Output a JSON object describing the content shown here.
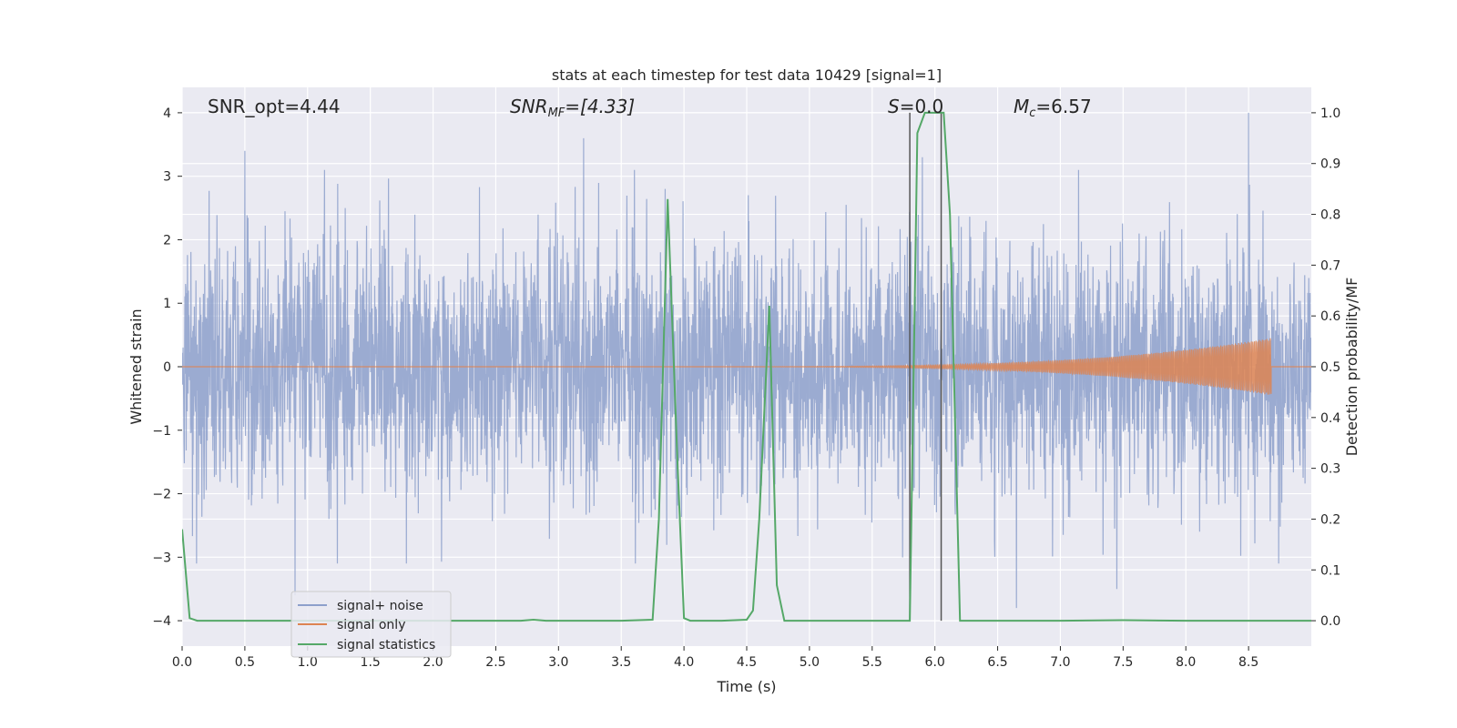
{
  "chart_data": {
    "type": "line",
    "title": "stats at each timestep for test data 10429 [signal=1]",
    "xlabel": "Time (s)",
    "ylabel_left": "Whitened strain",
    "ylabel_right": "Detection probability/MF",
    "xlim": [
      0,
      9.0
    ],
    "ylim_left": [
      -4.4,
      4.4
    ],
    "ylim_right": [
      -0.05,
      1.05
    ],
    "xticks": [
      0.0,
      0.5,
      1.0,
      1.5,
      2.0,
      2.5,
      3.0,
      3.5,
      4.0,
      4.5,
      5.0,
      5.5,
      6.0,
      6.5,
      7.0,
      7.5,
      8.0,
      8.5
    ],
    "xtick_labels": [
      "0.0",
      "0.5",
      "1.0",
      "1.5",
      "2.0",
      "2.5",
      "3.0",
      "3.5",
      "4.0",
      "4.5",
      "5.0",
      "5.5",
      "6.0",
      "6.5",
      "7.0",
      "7.5",
      "8.0",
      "8.5"
    ],
    "yticks_left": [
      4,
      3,
      2,
      1,
      0,
      -1,
      -2,
      -3,
      -4
    ],
    "ytick_labels_left": [
      "4",
      "3",
      "2",
      "1",
      "0",
      "−1",
      "−2",
      "−3",
      "−4"
    ],
    "yticks_right": [
      1.0,
      0.9,
      0.8,
      0.7,
      0.6,
      0.5,
      0.4,
      0.3,
      0.2,
      0.1,
      0.0
    ],
    "ytick_labels_right": [
      "1.0",
      "0.9",
      "0.8",
      "0.7",
      "0.6",
      "0.5",
      "0.4",
      "0.3",
      "0.2",
      "0.1",
      "0.0"
    ],
    "grid": true,
    "legend_position": "lower-left",
    "annotations": {
      "snr_opt": "SNR_opt=4.44",
      "snr_mf_base": "SNR",
      "snr_mf_sub": "MF",
      "snr_mf_value": "=[4.33]",
      "s_stat_base": "S",
      "s_stat_value": "=0.0",
      "mc_base": "M",
      "mc_sub": "c",
      "mc_value": "=6.57"
    },
    "vertical_markers": [
      5.8,
      6.05
    ],
    "series": [
      {
        "name": "signal+ noise",
        "axis": "left",
        "color": "#8da0cb",
        "kind": "noise",
        "amplitude_std": 1.0,
        "peaks": [
          [
            0.5,
            3.4
          ],
          [
            3.2,
            3.6
          ],
          [
            8.5,
            4.0
          ],
          [
            1.3,
            2.5
          ],
          [
            3.85,
            2.8
          ],
          [
            5.9,
            3.3
          ],
          [
            0.9,
            -3.6
          ],
          [
            6.65,
            -3.8
          ],
          [
            7.45,
            -3.5
          ]
        ]
      },
      {
        "name": "signal only",
        "axis": "left",
        "color": "#dd8452",
        "kind": "chirp",
        "start": 4.6,
        "end": 8.68,
        "final_amplitude": 0.42
      },
      {
        "name": "signal statistics",
        "axis": "right",
        "color": "#55a868",
        "x": [
          0.0,
          0.06,
          0.12,
          0.5,
          1.0,
          1.5,
          2.0,
          2.5,
          2.7,
          2.8,
          2.9,
          3.0,
          3.5,
          3.75,
          3.8,
          3.87,
          3.95,
          4.0,
          4.05,
          4.3,
          4.5,
          4.55,
          4.6,
          4.68,
          4.74,
          4.8,
          4.85,
          5.0,
          5.5,
          5.8,
          5.86,
          5.92,
          6.0,
          6.07,
          6.12,
          6.2,
          6.5,
          7.0,
          7.5,
          8.0,
          8.5,
          9.0
        ],
        "y": [
          0.18,
          0.005,
          0.0,
          0.0,
          0.0,
          0.0,
          0.0,
          0.0,
          0.0,
          0.002,
          0.0,
          0.0,
          0.0,
          0.002,
          0.2,
          0.83,
          0.3,
          0.005,
          0.0,
          0.0,
          0.002,
          0.02,
          0.2,
          0.62,
          0.07,
          0.0,
          0.0,
          0.0,
          0.0,
          0.0,
          0.96,
          1.0,
          1.0,
          1.0,
          0.8,
          0.0,
          0.0,
          0.0,
          0.001,
          0.0,
          0.0,
          0.0
        ]
      }
    ]
  }
}
